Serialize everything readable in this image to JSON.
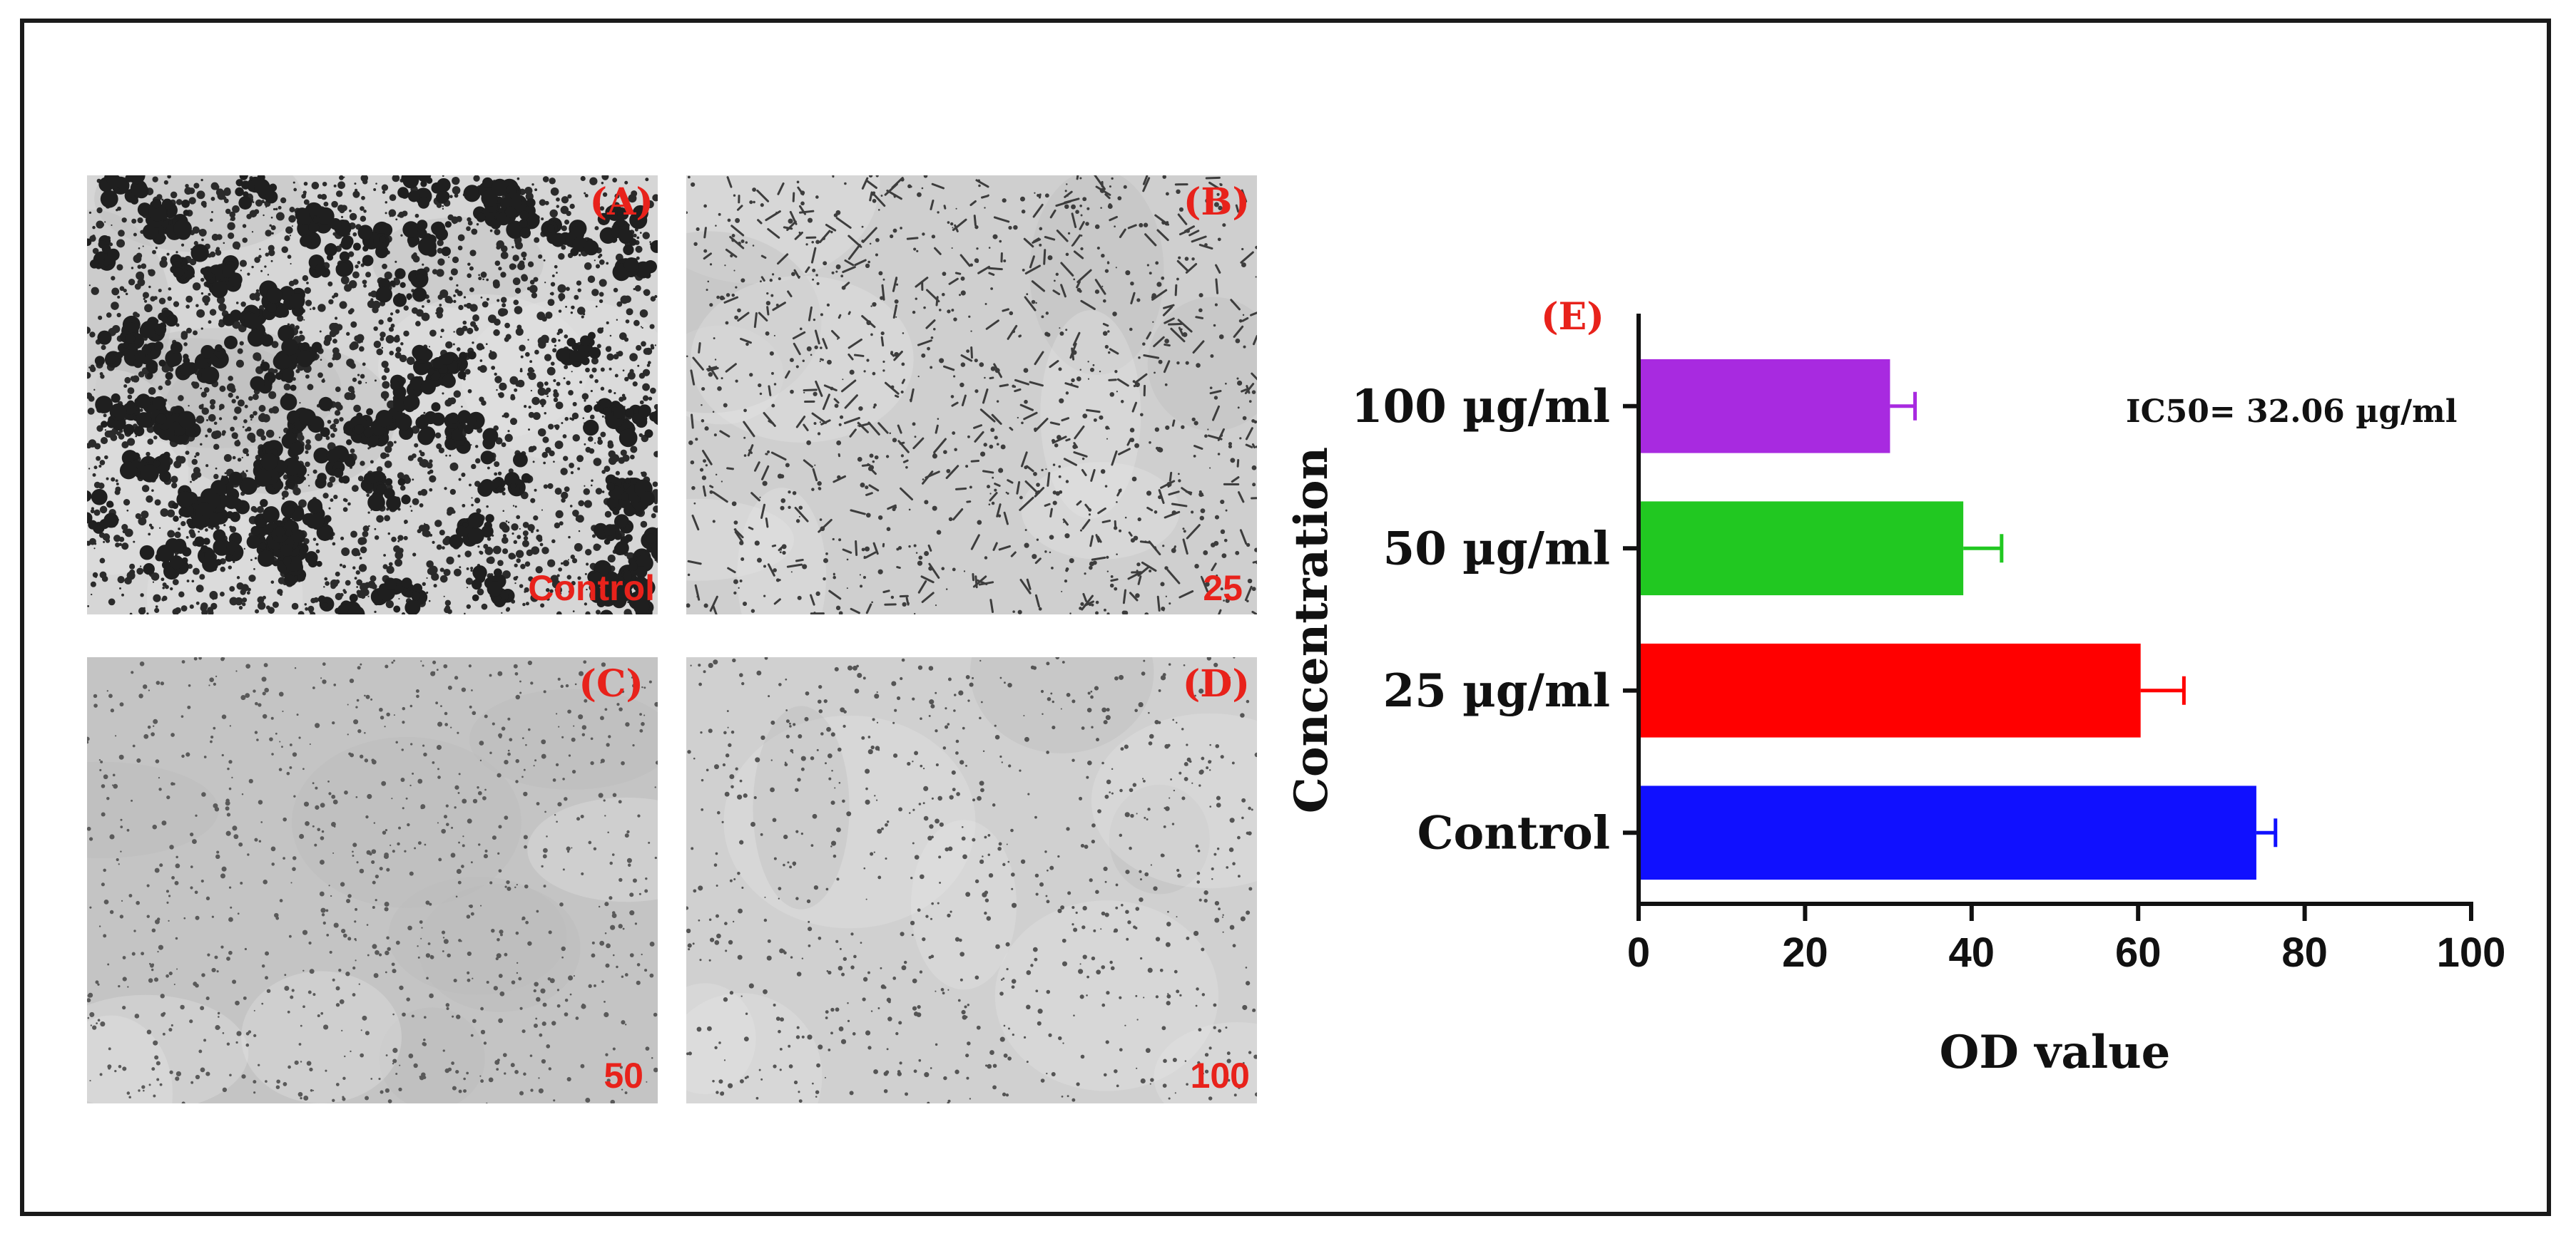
{
  "panels": [
    {
      "letter": "(A)",
      "caption": "Control",
      "density": 0.85,
      "tone": "#2b2b2b",
      "bg": "#d6d6d6"
    },
    {
      "letter": "(B)",
      "caption": "25",
      "density": 0.45,
      "tone": "#3d3d3d",
      "bg": "#cfcfcf"
    },
    {
      "letter": "(C)",
      "caption": "50",
      "density": 0.35,
      "tone": "#5a5a5a",
      "bg": "#c4c4c4"
    },
    {
      "letter": "(D)",
      "caption": "100",
      "density": 0.3,
      "tone": "#555555",
      "bg": "#d0d0d0"
    }
  ],
  "chart_letter": "(E)",
  "chart_data": {
    "type": "bar",
    "orientation": "horizontal",
    "categories": [
      "Control",
      "25 µg/ml",
      "50 µg/ml",
      "100 µg/ml"
    ],
    "series": [
      {
        "values": [
          74.2,
          60.3,
          39.0,
          30.2
        ],
        "errors": [
          2.3,
          5.2,
          4.6,
          3.0
        ],
        "colors": [
          "#1010ff",
          "#ff0000",
          "#21c821",
          "#a82ae0"
        ]
      }
    ],
    "xlabel": "OD value",
    "ylabel": "Concentration",
    "xlim": [
      0,
      100
    ],
    "xticks": [
      "0",
      "20",
      "40",
      "60",
      "80",
      "100"
    ],
    "annotation": "IC50= 32.06 µg/ml",
    "grid": false
  }
}
